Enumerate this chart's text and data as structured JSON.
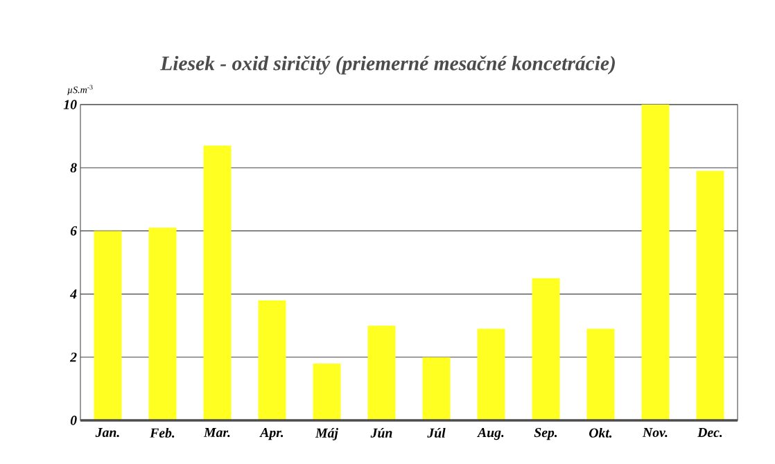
{
  "chart_data": {
    "type": "bar",
    "title": "*Liesek - oxid siričitý (priemerné mesačné koncetrácie)*",
    "ylabel": "*µS.m*$^{-3}$",
    "categories": [
      "Jan.",
      "Feb.",
      "Mar.",
      "Apr.",
      "Máj",
      "Jún",
      "Júl",
      "Aug.",
      "Sep.",
      "Okt.",
      "Nov.",
      "Dec."
    ],
    "values": [
      6.0,
      6.1,
      8.7,
      3.8,
      1.8,
      3.0,
      2.0,
      2.9,
      4.5,
      2.9,
      10.0,
      7.9
    ],
    "color": "#ffff22",
    "ylim": [
      0,
      10
    ],
    "yticks": [
      0,
      2,
      4,
      6,
      8,
      10
    ],
    "grid": "y"
  }
}
